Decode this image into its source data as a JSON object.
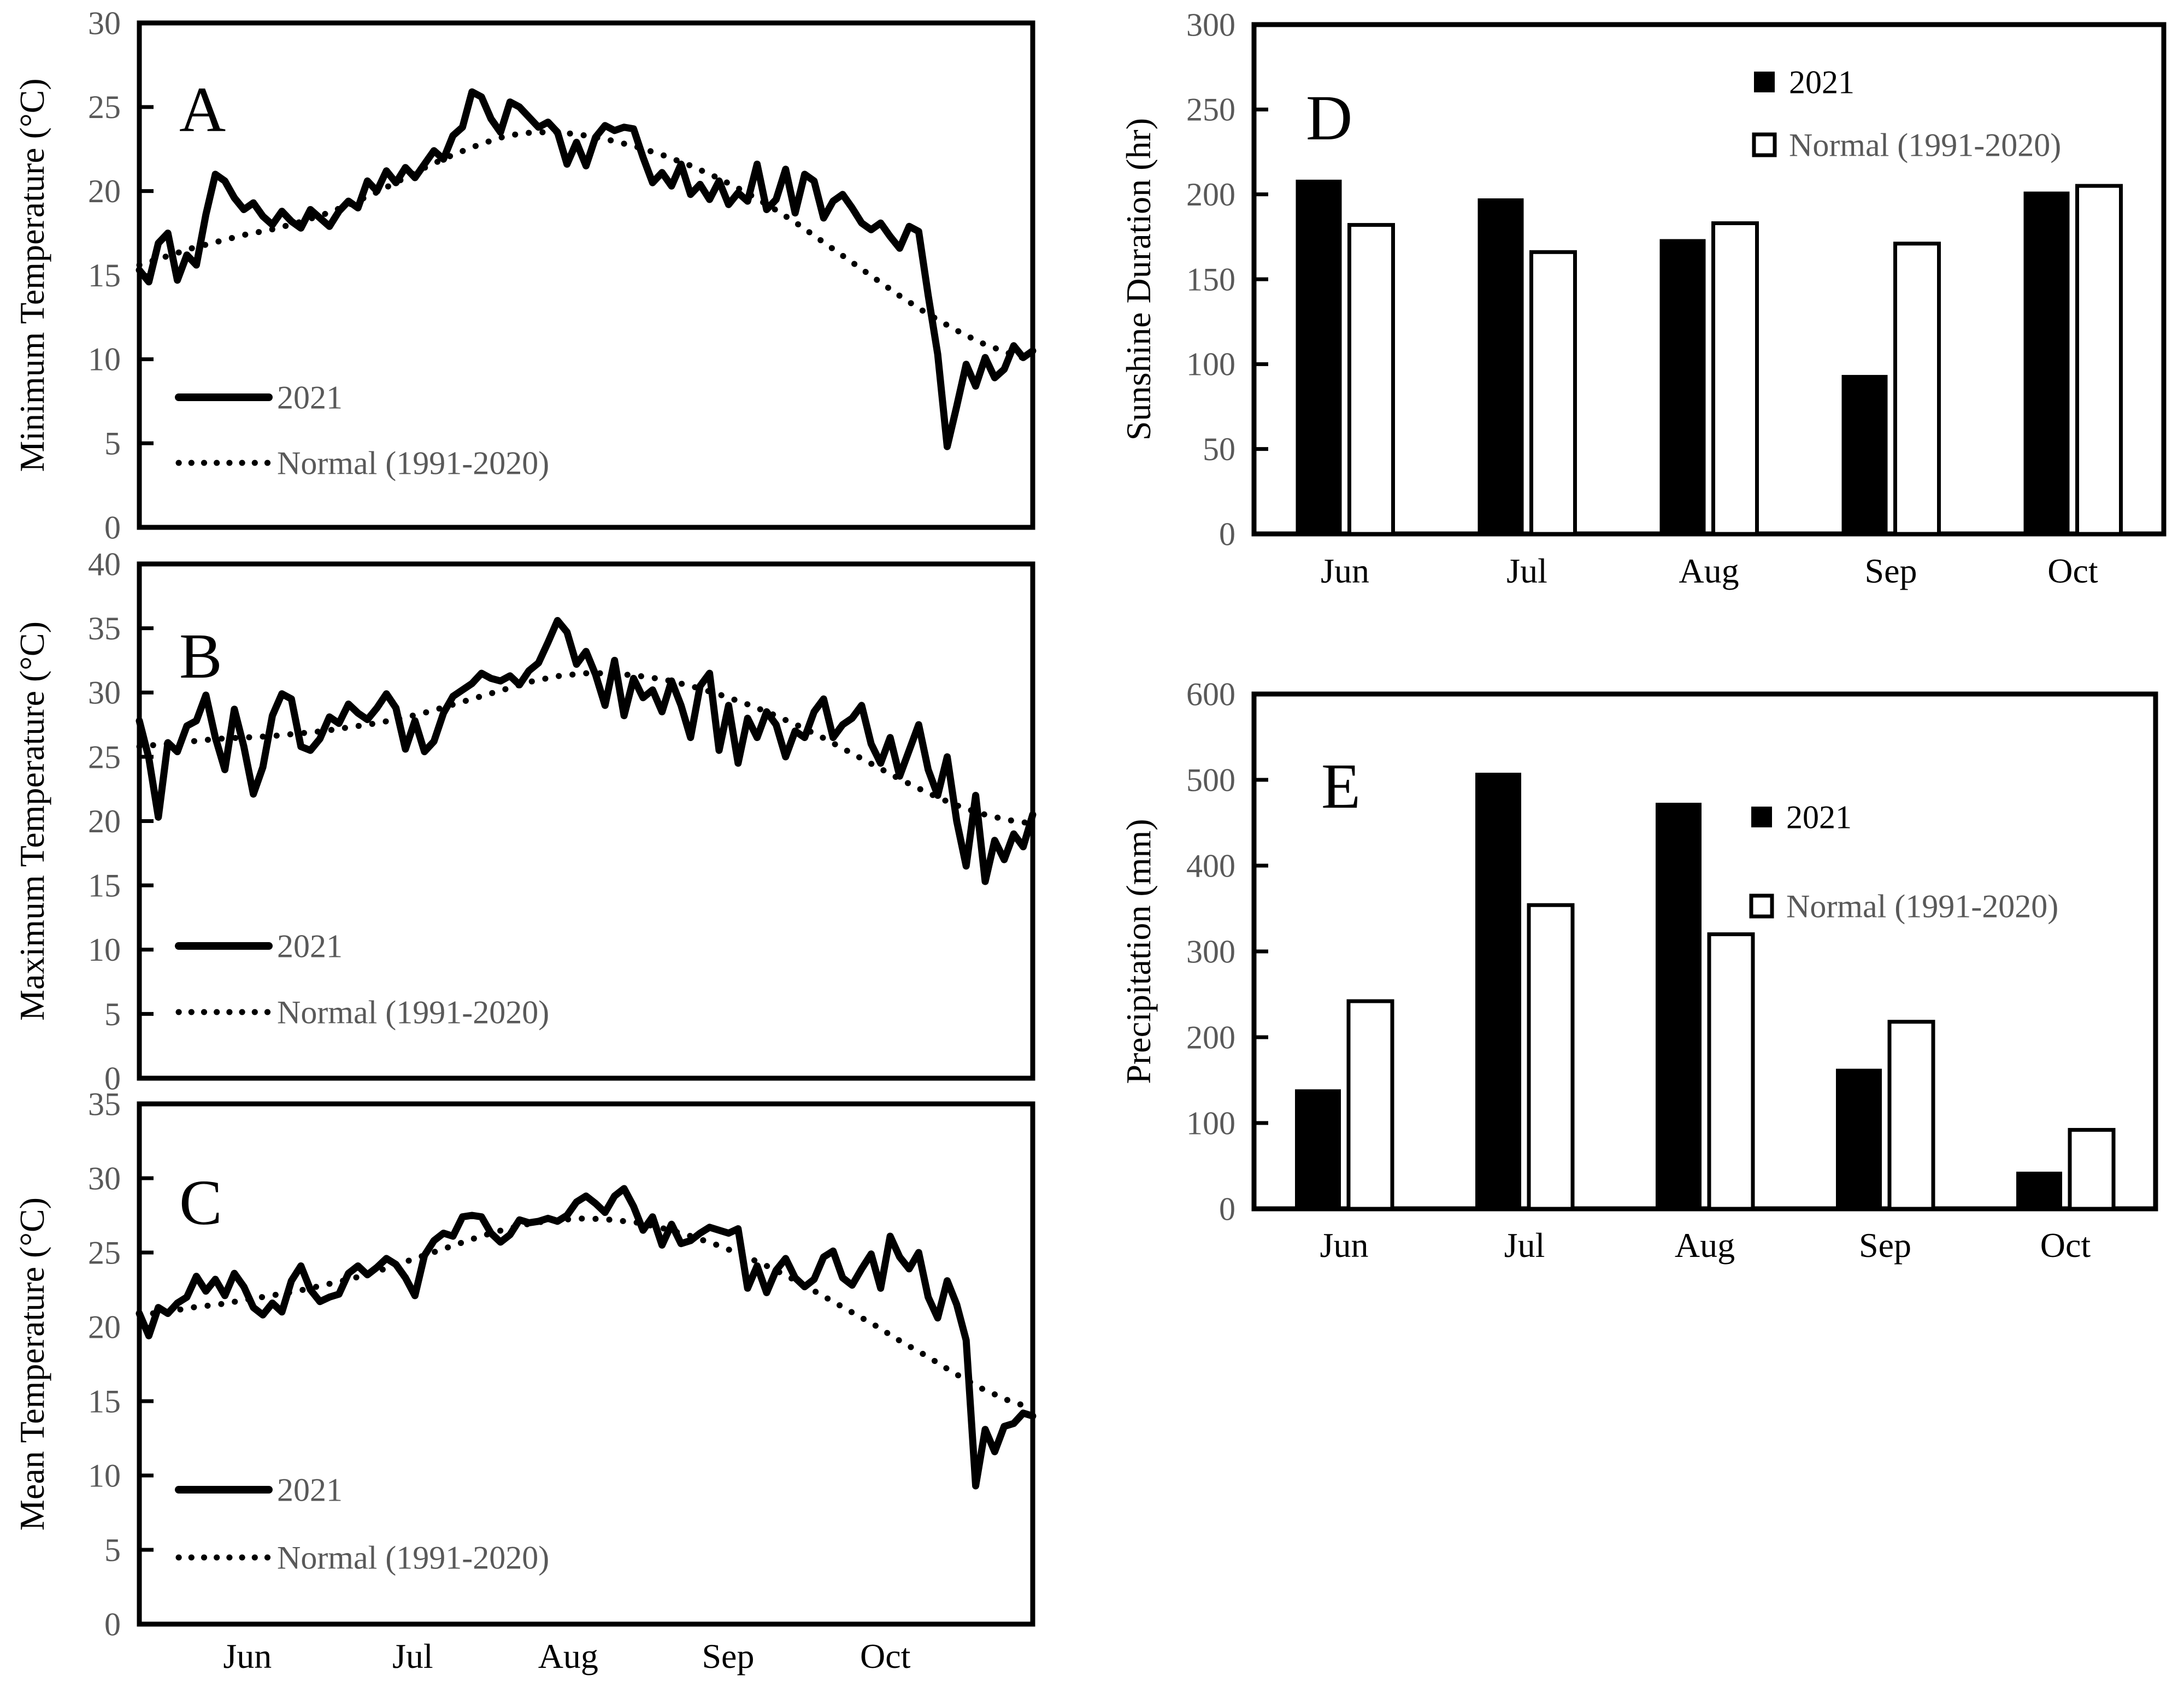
{
  "figure_title": "",
  "colors": {
    "axis": "#000000",
    "series_line": "#000000",
    "bar_2021_fill": "#000000",
    "bar_normal_fill": "#ffffff",
    "tick_label": "#595959",
    "legend_normal_text": "#595959",
    "legend_2021_text_line_panels": "#595959",
    "legend_2021_text_bar_panels": "#000000",
    "category_label": "#000000",
    "panel_letter": "#000000",
    "background": "#ffffff"
  },
  "chart_data": [
    {
      "id": "A",
      "type": "line",
      "panel_letter": "A",
      "ylabel": "Minimum Temperature (°C)",
      "ylim": [
        0,
        30
      ],
      "yticks": [
        "0",
        "5",
        "10",
        "15",
        "20",
        "25",
        "30"
      ],
      "x_month_labels": [],
      "grid": "off",
      "legend_position": "inside-lower-left",
      "legend": [
        {
          "label": "2021",
          "style": "solid"
        },
        {
          "label": "Normal (1991-2020)",
          "style": "dotted"
        }
      ],
      "series": [
        {
          "name": "2021",
          "style": "solid",
          "values": [
            15.3,
            14.6,
            16.9,
            17.5,
            14.7,
            16.2,
            15.6,
            18.6,
            21.0,
            20.6,
            19.6,
            18.9,
            19.3,
            18.5,
            18.0,
            18.8,
            18.2,
            17.8,
            18.9,
            18.4,
            17.9,
            18.8,
            19.4,
            19.0,
            20.6,
            20.0,
            21.2,
            20.5,
            21.4,
            20.8,
            21.6,
            22.4,
            21.9,
            23.3,
            23.8,
            25.9,
            25.6,
            24.3,
            23.5,
            25.3,
            25.0,
            24.4,
            23.8,
            24.1,
            23.5,
            21.6,
            22.9,
            21.5,
            23.2,
            23.9,
            23.6,
            23.8,
            23.7,
            22.0,
            20.5,
            21.1,
            20.3,
            21.6,
            19.8,
            20.4,
            19.5,
            20.6,
            19.2,
            19.9,
            19.4,
            21.6,
            18.9,
            19.5,
            21.3,
            18.7,
            21.0,
            20.6,
            18.4,
            19.4,
            19.8,
            19.0,
            18.1,
            17.7,
            18.1,
            17.3,
            16.6,
            17.9,
            17.6,
            13.8,
            10.3,
            4.8,
            7.2,
            9.7,
            8.4,
            10.1,
            8.9,
            9.4,
            10.8,
            10.1,
            10.5
          ]
        },
        {
          "name": "Normal (1991-2020)",
          "style": "dotted",
          "values": [
            15.6,
            16.1,
            16.6,
            17.0,
            17.4,
            17.7,
            18.1,
            18.6,
            19.2,
            19.9,
            20.7,
            21.5,
            22.2,
            22.8,
            23.3,
            23.5,
            23.5,
            23.3,
            23.0,
            22.6,
            22.1,
            21.5,
            20.8,
            20.0,
            19.1,
            18.1,
            17.0,
            15.9,
            14.8,
            13.7,
            12.7,
            11.8,
            11.0,
            10.4,
            9.9
          ]
        }
      ]
    },
    {
      "id": "B",
      "type": "line",
      "panel_letter": "B",
      "ylabel": "Maximum Temperature (°C)",
      "ylim": [
        0,
        40
      ],
      "yticks": [
        "0",
        "5",
        "10",
        "15",
        "20",
        "25",
        "30",
        "35",
        "40"
      ],
      "x_month_labels": [],
      "grid": "off",
      "legend_position": "inside-lower-left",
      "legend": [
        {
          "label": "2021",
          "style": "solid"
        },
        {
          "label": "Normal (1991-2020)",
          "style": "dotted"
        }
      ],
      "series": [
        {
          "name": "2021",
          "style": "solid",
          "values": [
            27.8,
            24.9,
            20.3,
            26.1,
            25.4,
            27.4,
            27.8,
            29.8,
            26.5,
            24.0,
            28.7,
            25.8,
            22.1,
            24.2,
            28.2,
            29.9,
            29.5,
            25.8,
            25.5,
            26.4,
            28.1,
            27.6,
            29.1,
            28.4,
            27.9,
            28.8,
            29.9,
            28.8,
            25.6,
            27.8,
            25.4,
            26.2,
            28.4,
            29.7,
            30.2,
            30.7,
            31.5,
            31.1,
            30.9,
            31.3,
            30.6,
            31.7,
            32.3,
            33.9,
            35.6,
            34.7,
            32.2,
            33.2,
            31.4,
            29.0,
            32.5,
            28.2,
            31.1,
            29.6,
            30.2,
            28.5,
            30.9,
            29.0,
            26.5,
            30.5,
            31.5,
            25.5,
            29.0,
            24.5,
            28.0,
            26.5,
            28.5,
            27.5,
            25.0,
            27.0,
            26.5,
            28.5,
            29.5,
            26.5,
            27.5,
            28.0,
            29.0,
            26.0,
            24.5,
            26.5,
            23.5,
            25.5,
            27.5,
            24.0,
            22.0,
            25.0,
            20.0,
            16.5,
            22.0,
            15.3,
            18.5,
            17.0,
            19.0,
            18.0,
            20.5
          ]
        },
        {
          "name": "Normal (1991-2020)",
          "style": "dotted",
          "values": [
            25.8,
            26.0,
            26.2,
            26.4,
            26.5,
            26.6,
            26.8,
            27.0,
            27.3,
            27.6,
            28.0,
            28.5,
            29.1,
            29.7,
            30.3,
            30.9,
            31.3,
            31.5,
            31.5,
            31.3,
            31.0,
            30.5,
            29.9,
            29.2,
            28.4,
            27.5,
            26.5,
            25.4,
            24.3,
            23.2,
            22.2,
            21.3,
            20.6,
            20.1,
            19.8
          ]
        }
      ]
    },
    {
      "id": "C",
      "type": "line",
      "panel_letter": "C",
      "ylabel": "Mean Temperature (°C)",
      "ylim": [
        0,
        35
      ],
      "yticks": [
        "0",
        "5",
        "10",
        "15",
        "20",
        "25",
        "30",
        "35"
      ],
      "x_month_labels": [
        "Jun",
        "Jul",
        "Aug",
        "Sep",
        "Oct"
      ],
      "grid": "off",
      "legend_position": "inside-lower-left",
      "legend": [
        {
          "label": "2021",
          "style": "solid"
        },
        {
          "label": "Normal (1991-2020)",
          "style": "dotted"
        }
      ],
      "series": [
        {
          "name": "2021",
          "style": "solid",
          "values": [
            20.9,
            19.4,
            21.3,
            20.9,
            21.6,
            22.0,
            23.4,
            22.4,
            23.2,
            22.1,
            23.6,
            22.7,
            21.3,
            20.8,
            21.6,
            21.0,
            23.1,
            24.1,
            22.5,
            21.7,
            22.0,
            22.2,
            23.6,
            24.1,
            23.5,
            24.0,
            24.6,
            24.2,
            23.3,
            22.1,
            24.8,
            25.8,
            26.3,
            26.1,
            27.4,
            27.5,
            27.4,
            26.3,
            25.7,
            26.2,
            27.2,
            27.0,
            27.1,
            27.3,
            27.1,
            27.5,
            28.4,
            28.8,
            28.3,
            27.7,
            28.8,
            29.3,
            28.1,
            26.5,
            27.4,
            25.5,
            26.9,
            25.6,
            25.8,
            26.3,
            26.7,
            26.5,
            26.3,
            26.6,
            22.6,
            24.1,
            22.3,
            23.8,
            24.6,
            23.3,
            22.7,
            23.2,
            24.7,
            25.1,
            23.3,
            22.8,
            23.9,
            24.9,
            22.6,
            26.1,
            24.7,
            23.9,
            25.0,
            22.0,
            20.6,
            23.1,
            21.5,
            19.1,
            9.3,
            13.1,
            11.6,
            13.3,
            13.5,
            14.2,
            14.0
          ]
        },
        {
          "name": "Normal (1991-2020)",
          "style": "dotted",
          "values": [
            20.8,
            21.0,
            21.3,
            21.5,
            21.8,
            22.1,
            22.4,
            22.8,
            23.2,
            23.7,
            24.3,
            24.9,
            25.5,
            26.1,
            26.6,
            27.0,
            27.2,
            27.3,
            27.2,
            27.0,
            26.6,
            26.1,
            25.5,
            24.8,
            24.0,
            23.1,
            22.1,
            21.1,
            20.1,
            19.0,
            18.0,
            16.9,
            15.9,
            15.1,
            14.5
          ]
        }
      ]
    },
    {
      "id": "D",
      "type": "bar",
      "panel_letter": "D",
      "ylabel": "Sunshine Duration (hr)",
      "ylim": [
        0,
        300
      ],
      "yticks": [
        "0",
        "50",
        "100",
        "150",
        "200",
        "250",
        "300"
      ],
      "categories": [
        "Jun",
        "Jul",
        "Aug",
        "Sep",
        "Oct"
      ],
      "grid": "off",
      "legend_position": "inside-upper-right",
      "legend": [
        {
          "label": "2021",
          "style": "filled-square"
        },
        {
          "label": "Normal (1991-2020)",
          "style": "open-square"
        }
      ],
      "series": [
        {
          "name": "2021",
          "fill": "black",
          "values": [
            208,
            197,
            173,
            93,
            201
          ]
        },
        {
          "name": "Normal (1991-2020)",
          "fill": "white",
          "values": [
            182,
            166,
            183,
            171,
            205
          ]
        }
      ]
    },
    {
      "id": "E",
      "type": "bar",
      "panel_letter": "E",
      "ylabel": "Precipitation (mm)",
      "ylim": [
        0,
        600
      ],
      "yticks": [
        "0",
        "100",
        "200",
        "300",
        "400",
        "500",
        "600"
      ],
      "categories": [
        "Jun",
        "Jul",
        "Aug",
        "Sep",
        "Oct"
      ],
      "grid": "off",
      "legend_position": "inside-upper-right",
      "legend": [
        {
          "label": "2021",
          "style": "filled-square"
        },
        {
          "label": "Normal (1991-2020)",
          "style": "open-square"
        }
      ],
      "series": [
        {
          "name": "2021",
          "fill": "black",
          "values": [
            138,
            507,
            472,
            162,
            42
          ]
        },
        {
          "name": "Normal (1991-2020)",
          "fill": "white",
          "values": [
            242,
            354,
            320,
            218,
            92
          ]
        }
      ]
    }
  ]
}
